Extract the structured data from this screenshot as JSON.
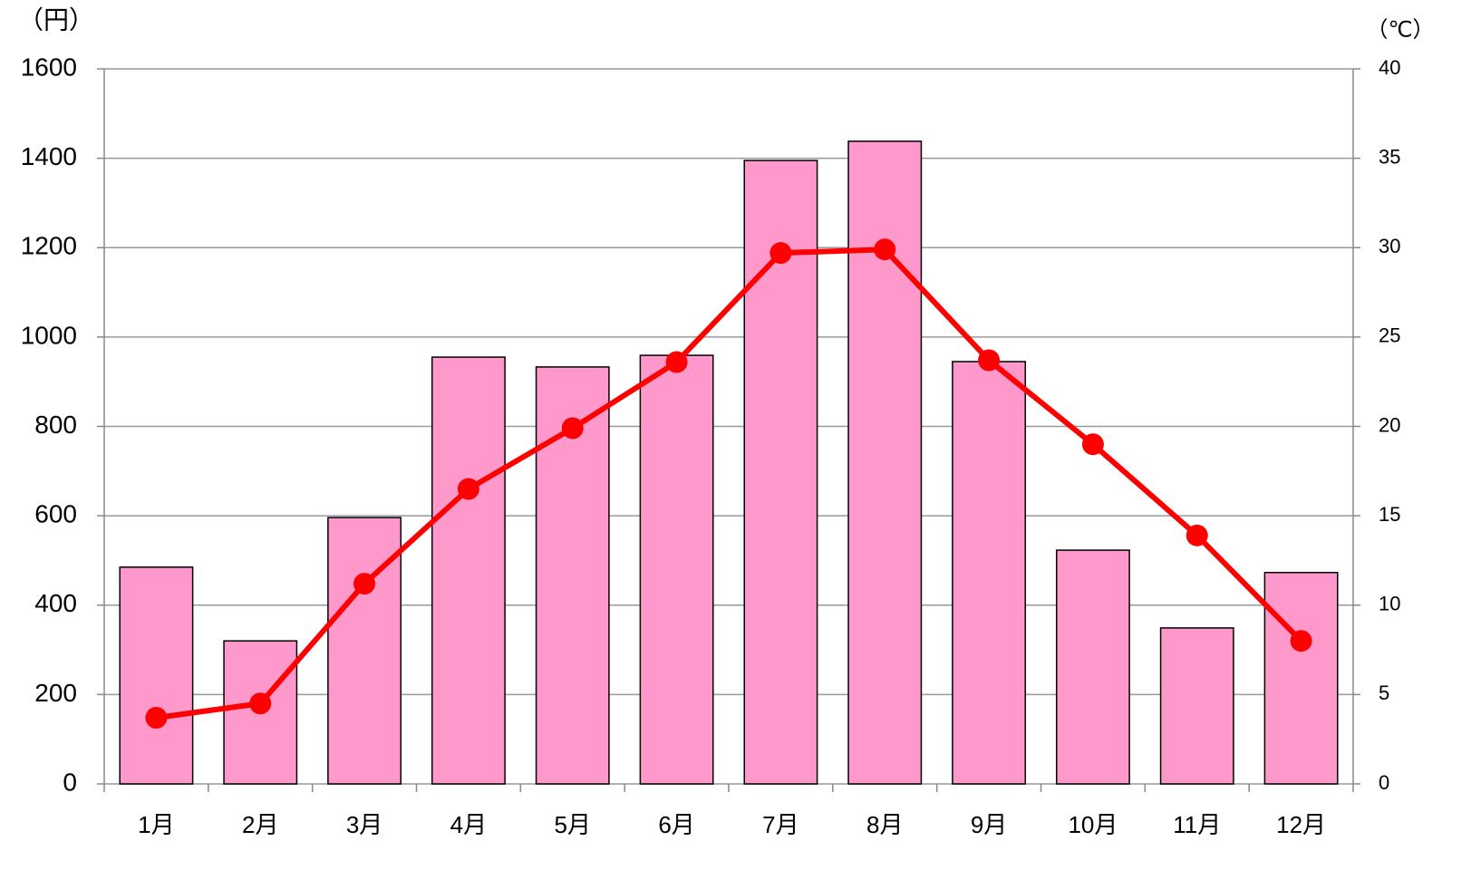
{
  "chart_data": {
    "type": "bar_line",
    "y_label": "（円）",
    "y2_label": "（℃）",
    "categories": [
      "1月",
      "2月",
      "3月",
      "4月",
      "5月",
      "6月",
      "7月",
      "8月",
      "9月",
      "10月",
      "11月",
      "12月"
    ],
    "series": [
      {
        "type": "bar",
        "color": "#ff99cc",
        "values": [
          485,
          320,
          596,
          955,
          933,
          959,
          1395,
          1438,
          945,
          523,
          349,
          473
        ]
      },
      {
        "type": "line",
        "axis": "y2",
        "color": "#ff0000",
        "values": [
          3.7,
          4.5,
          11.2,
          16.5,
          19.9,
          23.6,
          29.7,
          29.9,
          23.7,
          19.0,
          13.9,
          8.0
        ]
      }
    ],
    "ylim": [
      0,
      1600
    ],
    "yticks": [
      0,
      200,
      400,
      600,
      800,
      1000,
      1200,
      1400,
      1600
    ],
    "y2lim": [
      0,
      40
    ],
    "y2ticks": [
      0,
      5,
      10,
      15,
      20,
      25,
      30,
      35,
      40
    ],
    "grid": true
  }
}
